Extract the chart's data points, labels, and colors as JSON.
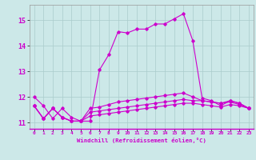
{
  "xlabel": "Windchill (Refroidissement éolien,°C)",
  "bg_color": "#cce8e8",
  "line_color": "#cc00cc",
  "grid_color": "#aacccc",
  "xlim": [
    -0.5,
    23.5
  ],
  "ylim": [
    10.75,
    15.6
  ],
  "yticks": [
    11,
    12,
    13,
    14,
    15
  ],
  "xticks": [
    0,
    1,
    2,
    3,
    4,
    5,
    6,
    7,
    8,
    9,
    10,
    11,
    12,
    13,
    14,
    15,
    16,
    17,
    18,
    19,
    20,
    21,
    22,
    23
  ],
  "series": [
    [
      12.0,
      11.65,
      11.15,
      11.55,
      11.2,
      11.05,
      11.05,
      13.05,
      13.65,
      14.55,
      14.5,
      14.65,
      14.65,
      14.85,
      14.85,
      15.05,
      15.25,
      14.2,
      11.95,
      11.85,
      11.65,
      11.85,
      11.75,
      11.55
    ],
    [
      11.65,
      11.15,
      11.55,
      11.2,
      11.05,
      11.05,
      11.55,
      11.6,
      11.7,
      11.8,
      11.85,
      11.9,
      11.95,
      12.0,
      12.05,
      12.1,
      12.15,
      12.0,
      11.85,
      11.8,
      11.75,
      11.85,
      11.75,
      11.55
    ],
    [
      11.65,
      11.15,
      11.55,
      11.2,
      11.05,
      11.05,
      11.4,
      11.45,
      11.5,
      11.55,
      11.6,
      11.65,
      11.7,
      11.75,
      11.8,
      11.85,
      11.9,
      11.85,
      11.85,
      11.8,
      11.75,
      11.8,
      11.7,
      11.55
    ],
    [
      11.65,
      11.15,
      11.55,
      11.2,
      11.05,
      11.05,
      11.25,
      11.3,
      11.35,
      11.4,
      11.45,
      11.5,
      11.55,
      11.6,
      11.65,
      11.7,
      11.75,
      11.75,
      11.7,
      11.65,
      11.6,
      11.7,
      11.65,
      11.55
    ]
  ]
}
